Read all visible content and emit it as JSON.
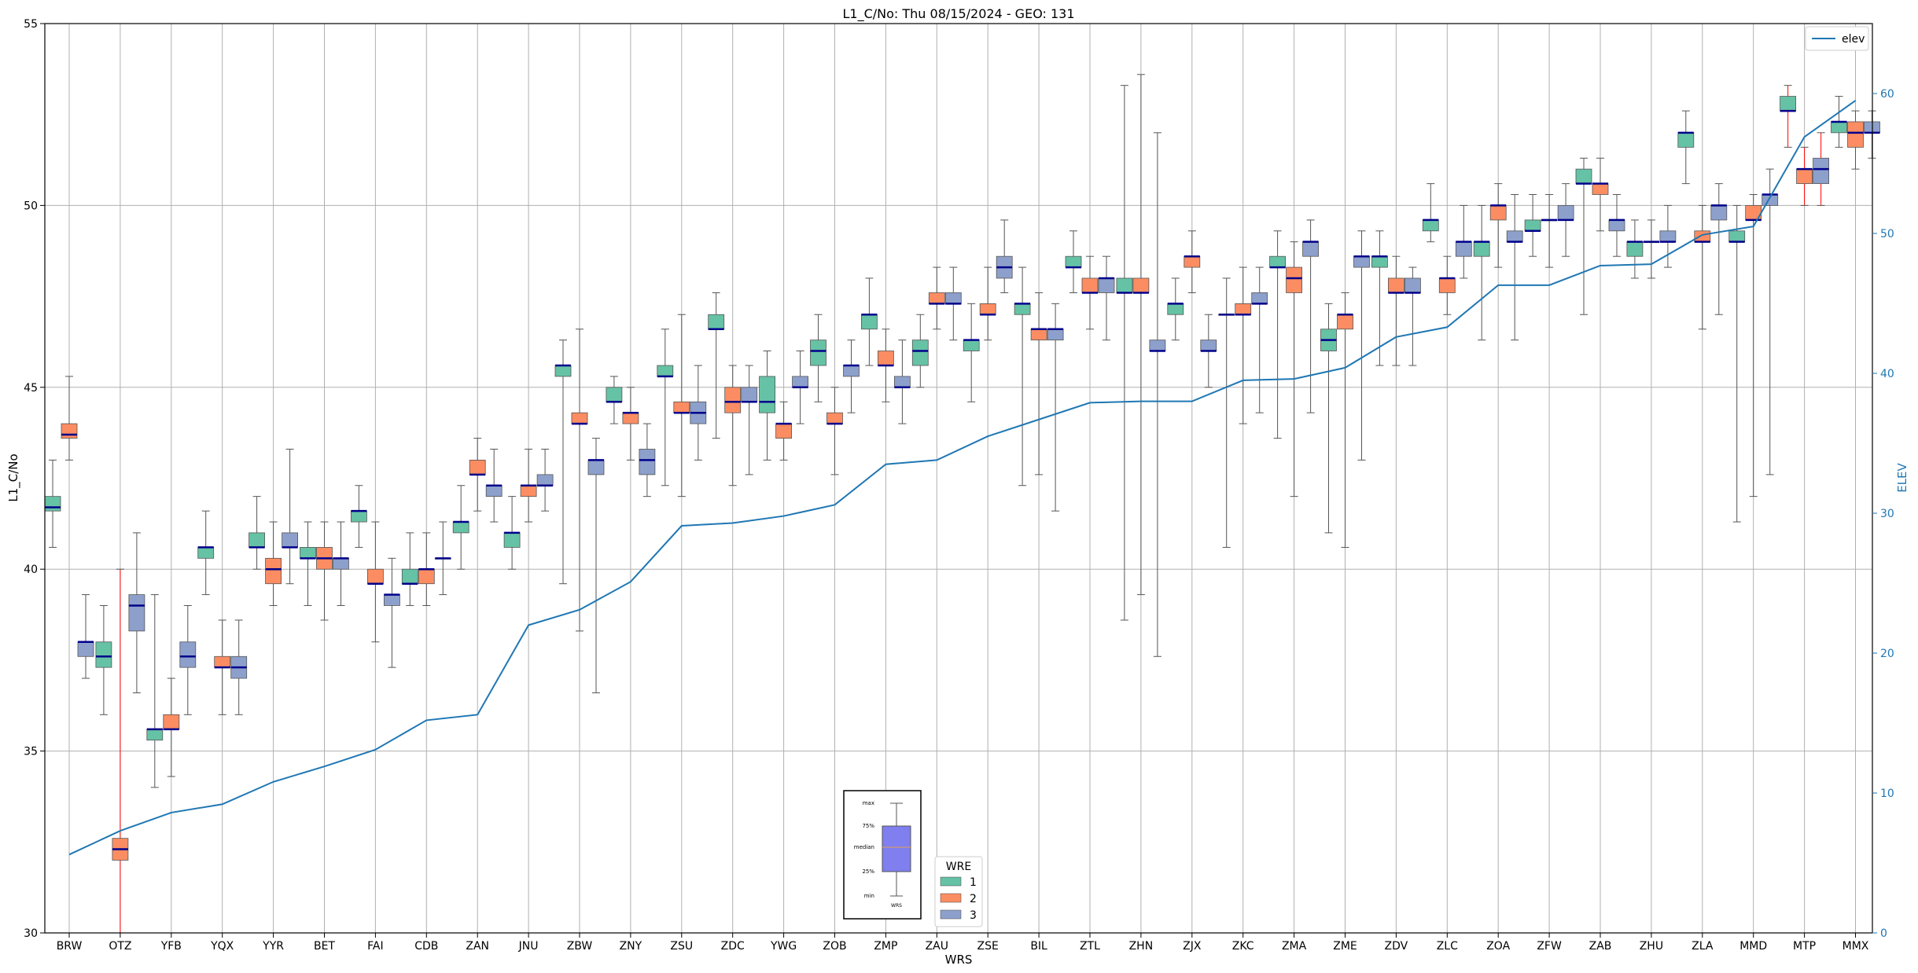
{
  "chart_data": {
    "type": "box",
    "title": "L1_C/No: Thu 08/15/2024 - GEO: 131",
    "xlabel": "WRS",
    "ylabel": "L1_C/No",
    "y2label": "ELEV",
    "ylim": [
      30,
      55
    ],
    "y2lim": [
      0,
      65
    ],
    "yticks": [
      30,
      35,
      40,
      45,
      50,
      55
    ],
    "y2ticks": [
      0,
      10,
      20,
      30,
      40,
      50,
      60
    ],
    "grid": true,
    "colors": {
      "wre1": "#66c2a5",
      "wre2": "#fc8d62",
      "wre3": "#8da0cb",
      "elev": "#1f77b4",
      "median": "#00008b",
      "outlier_whisker": "#ff0000"
    },
    "stations": [
      "BRW",
      "OTZ",
      "YFB",
      "YQX",
      "YYR",
      "BET",
      "FAI",
      "CDB",
      "ZAN",
      "JNU",
      "ZBW",
      "ZNY",
      "ZSU",
      "ZDC",
      "YWG",
      "ZOB",
      "ZMP",
      "ZAU",
      "ZSE",
      "BIL",
      "ZTL",
      "ZHN",
      "ZJX",
      "ZKC",
      "ZMA",
      "ZME",
      "ZDV",
      "ZLC",
      "ZOA",
      "ZFW",
      "ZAB",
      "ZHU",
      "ZLA",
      "MMD",
      "MTP",
      "MMX"
    ],
    "elev": [
      5.6,
      7.3,
      8.6,
      9.2,
      10.8,
      11.9,
      13.1,
      15.2,
      15.6,
      22.0,
      23.1,
      25.1,
      29.1,
      29.3,
      29.8,
      30.6,
      33.5,
      33.8,
      35.5,
      36.7,
      37.9,
      38.0,
      38.0,
      39.5,
      39.6,
      40.4,
      42.6,
      43.3,
      46.3,
      46.3,
      47.7,
      47.8,
      49.9,
      50.5,
      56.9,
      59.5
    ],
    "legend": {
      "title": "WRE",
      "items": [
        "1",
        "2",
        "3"
      ],
      "line_label": "elev"
    },
    "key": {
      "labels": [
        "max",
        "75%",
        "median",
        "25%",
        "min"
      ],
      "xlabel": "WRS"
    },
    "boxes": [
      {
        "station": "BRW",
        "wre": 1,
        "min": 40.6,
        "q1": 41.6,
        "med": 41.7,
        "q3": 42.0,
        "max": 43.0
      },
      {
        "station": "BRW",
        "wre": 2,
        "min": 43.0,
        "q1": 43.6,
        "med": 43.7,
        "q3": 44.0,
        "max": 45.3
      },
      {
        "station": "BRW",
        "wre": 3,
        "min": 37.0,
        "q1": 37.6,
        "med": 38.0,
        "q3": 38.0,
        "max": 39.3
      },
      {
        "station": "OTZ",
        "wre": 1,
        "min": 36.0,
        "q1": 37.3,
        "med": 37.6,
        "q3": 38.0,
        "max": 39.0
      },
      {
        "station": "OTZ",
        "wre": 2,
        "min": 30.0,
        "q1": 32.0,
        "med": 32.3,
        "q3": 32.6,
        "max": 40.0,
        "red": true
      },
      {
        "station": "OTZ",
        "wre": 3,
        "min": 36.6,
        "q1": 38.3,
        "med": 39.0,
        "q3": 39.3,
        "max": 41.0
      },
      {
        "station": "YFB",
        "wre": 1,
        "min": 34.0,
        "q1": 35.3,
        "med": 35.6,
        "q3": 35.6,
        "max": 39.3
      },
      {
        "station": "YFB",
        "wre": 2,
        "min": 34.3,
        "q1": 35.6,
        "med": 35.6,
        "q3": 36.0,
        "max": 37.0
      },
      {
        "station": "YFB",
        "wre": 3,
        "min": 36.0,
        "q1": 37.3,
        "med": 37.6,
        "q3": 38.0,
        "max": 39.0
      },
      {
        "station": "YQX",
        "wre": 1,
        "min": 39.3,
        "q1": 40.3,
        "med": 40.6,
        "q3": 40.6,
        "max": 41.6
      },
      {
        "station": "YQX",
        "wre": 2,
        "min": 36.0,
        "q1": 37.3,
        "med": 37.3,
        "q3": 37.6,
        "max": 38.6
      },
      {
        "station": "YQX",
        "wre": 3,
        "min": 36.0,
        "q1": 37.0,
        "med": 37.3,
        "q3": 37.6,
        "max": 38.6
      },
      {
        "station": "YYR",
        "wre": 1,
        "min": 40.0,
        "q1": 40.6,
        "med": 40.6,
        "q3": 41.0,
        "max": 42.0
      },
      {
        "station": "YYR",
        "wre": 2,
        "min": 39.0,
        "q1": 39.6,
        "med": 40.0,
        "q3": 40.3,
        "max": 41.3
      },
      {
        "station": "YYR",
        "wre": 3,
        "min": 39.6,
        "q1": 40.6,
        "med": 40.6,
        "q3": 41.0,
        "max": 43.3
      },
      {
        "station": "BET",
        "wre": 1,
        "min": 39.0,
        "q1": 40.3,
        "med": 40.3,
        "q3": 40.6,
        "max": 41.3
      },
      {
        "station": "BET",
        "wre": 2,
        "min": 38.6,
        "q1": 40.0,
        "med": 40.3,
        "q3": 40.6,
        "max": 41.3
      },
      {
        "station": "BET",
        "wre": 3,
        "min": 39.0,
        "q1": 40.0,
        "med": 40.3,
        "q3": 40.3,
        "max": 41.3
      },
      {
        "station": "FAI",
        "wre": 1,
        "min": 40.6,
        "q1": 41.3,
        "med": 41.6,
        "q3": 41.6,
        "max": 42.3
      },
      {
        "station": "FAI",
        "wre": 2,
        "min": 38.0,
        "q1": 39.6,
        "med": 39.6,
        "q3": 40.0,
        "max": 41.3
      },
      {
        "station": "FAI",
        "wre": 3,
        "min": 37.3,
        "q1": 39.0,
        "med": 39.3,
        "q3": 39.3,
        "max": 40.3
      },
      {
        "station": "CDB",
        "wre": 1,
        "min": 39.0,
        "q1": 39.6,
        "med": 39.6,
        "q3": 40.0,
        "max": 41.0
      },
      {
        "station": "CDB",
        "wre": 2,
        "min": 39.0,
        "q1": 39.6,
        "med": 40.0,
        "q3": 40.0,
        "max": 41.0
      },
      {
        "station": "CDB",
        "wre": 3,
        "min": 39.3,
        "q1": 40.3,
        "med": 40.3,
        "q3": 40.3,
        "max": 41.3
      },
      {
        "station": "ZAN",
        "wre": 1,
        "min": 40.0,
        "q1": 41.0,
        "med": 41.3,
        "q3": 41.3,
        "max": 42.3
      },
      {
        "station": "ZAN",
        "wre": 2,
        "min": 41.6,
        "q1": 42.6,
        "med": 42.6,
        "q3": 43.0,
        "max": 43.6
      },
      {
        "station": "ZAN",
        "wre": 3,
        "min": 41.3,
        "q1": 42.0,
        "med": 42.3,
        "q3": 42.3,
        "max": 43.3
      },
      {
        "station": "JNU",
        "wre": 1,
        "min": 40.0,
        "q1": 40.6,
        "med": 41.0,
        "q3": 41.0,
        "max": 42.0
      },
      {
        "station": "JNU",
        "wre": 2,
        "min": 41.3,
        "q1": 42.0,
        "med": 42.3,
        "q3": 42.3,
        "max": 43.3
      },
      {
        "station": "JNU",
        "wre": 3,
        "min": 41.6,
        "q1": 42.3,
        "med": 42.3,
        "q3": 42.6,
        "max": 43.3
      },
      {
        "station": "ZBW",
        "wre": 1,
        "min": 39.6,
        "q1": 45.3,
        "med": 45.6,
        "q3": 45.6,
        "max": 46.3
      },
      {
        "station": "ZBW",
        "wre": 2,
        "min": 38.3,
        "q1": 44.0,
        "med": 44.0,
        "q3": 44.3,
        "max": 46.6
      },
      {
        "station": "ZBW",
        "wre": 3,
        "min": 36.6,
        "q1": 42.6,
        "med": 43.0,
        "q3": 43.0,
        "max": 43.6
      },
      {
        "station": "ZNY",
        "wre": 1,
        "min": 44.0,
        "q1": 44.6,
        "med": 44.6,
        "q3": 45.0,
        "max": 45.3
      },
      {
        "station": "ZNY",
        "wre": 2,
        "min": 43.0,
        "q1": 44.0,
        "med": 44.3,
        "q3": 44.3,
        "max": 45.0
      },
      {
        "station": "ZNY",
        "wre": 3,
        "min": 42.0,
        "q1": 42.6,
        "med": 43.0,
        "q3": 43.3,
        "max": 44.0
      },
      {
        "station": "ZSU",
        "wre": 1,
        "min": 42.3,
        "q1": 45.3,
        "med": 45.3,
        "q3": 45.6,
        "max": 46.6
      },
      {
        "station": "ZSU",
        "wre": 2,
        "min": 42.0,
        "q1": 44.3,
        "med": 44.3,
        "q3": 44.6,
        "max": 47.0
      },
      {
        "station": "ZSU",
        "wre": 3,
        "min": 43.0,
        "q1": 44.0,
        "med": 44.3,
        "q3": 44.6,
        "max": 45.6
      },
      {
        "station": "ZDC",
        "wre": 1,
        "min": 43.6,
        "q1": 46.6,
        "med": 46.6,
        "q3": 47.0,
        "max": 47.6
      },
      {
        "station": "ZDC",
        "wre": 2,
        "min": 42.3,
        "q1": 44.3,
        "med": 44.6,
        "q3": 45.0,
        "max": 45.6
      },
      {
        "station": "ZDC",
        "wre": 3,
        "min": 42.6,
        "q1": 44.6,
        "med": 44.6,
        "q3": 45.0,
        "max": 45.6
      },
      {
        "station": "YWG",
        "wre": 1,
        "min": 43.0,
        "q1": 44.3,
        "med": 44.6,
        "q3": 45.3,
        "max": 46.0
      },
      {
        "station": "YWG",
        "wre": 2,
        "min": 43.0,
        "q1": 43.6,
        "med": 44.0,
        "q3": 44.0,
        "max": 44.6
      },
      {
        "station": "YWG",
        "wre": 3,
        "min": 44.0,
        "q1": 45.0,
        "med": 45.0,
        "q3": 45.3,
        "max": 46.0
      },
      {
        "station": "ZOB",
        "wre": 1,
        "min": 44.6,
        "q1": 45.6,
        "med": 46.0,
        "q3": 46.3,
        "max": 47.0
      },
      {
        "station": "ZOB",
        "wre": 2,
        "min": 42.6,
        "q1": 44.0,
        "med": 44.0,
        "q3": 44.3,
        "max": 45.0
      },
      {
        "station": "ZOB",
        "wre": 3,
        "min": 44.3,
        "q1": 45.3,
        "med": 45.6,
        "q3": 45.6,
        "max": 46.3
      },
      {
        "station": "ZMP",
        "wre": 1,
        "min": 45.6,
        "q1": 46.6,
        "med": 47.0,
        "q3": 47.0,
        "max": 48.0
      },
      {
        "station": "ZMP",
        "wre": 2,
        "min": 44.6,
        "q1": 45.6,
        "med": 45.6,
        "q3": 46.0,
        "max": 46.6
      },
      {
        "station": "ZMP",
        "wre": 3,
        "min": 44.0,
        "q1": 45.0,
        "med": 45.0,
        "q3": 45.3,
        "max": 46.3
      },
      {
        "station": "ZAU",
        "wre": 1,
        "min": 45.0,
        "q1": 45.6,
        "med": 46.0,
        "q3": 46.3,
        "max": 47.0
      },
      {
        "station": "ZAU",
        "wre": 2,
        "min": 46.6,
        "q1": 47.3,
        "med": 47.3,
        "q3": 47.6,
        "max": 48.3
      },
      {
        "station": "ZAU",
        "wre": 3,
        "min": 46.3,
        "q1": 47.3,
        "med": 47.3,
        "q3": 47.6,
        "max": 48.3
      },
      {
        "station": "ZSE",
        "wre": 1,
        "min": 44.6,
        "q1": 46.0,
        "med": 46.3,
        "q3": 46.3,
        "max": 47.3
      },
      {
        "station": "ZSE",
        "wre": 2,
        "min": 46.3,
        "q1": 47.0,
        "med": 47.0,
        "q3": 47.3,
        "max": 48.3
      },
      {
        "station": "ZSE",
        "wre": 3,
        "min": 47.6,
        "q1": 48.0,
        "med": 48.3,
        "q3": 48.6,
        "max": 49.6
      },
      {
        "station": "BIL",
        "wre": 1,
        "min": 42.3,
        "q1": 47.0,
        "med": 47.3,
        "q3": 47.3,
        "max": 48.3
      },
      {
        "station": "BIL",
        "wre": 2,
        "min": 42.6,
        "q1": 46.3,
        "med": 46.6,
        "q3": 46.6,
        "max": 47.6
      },
      {
        "station": "BIL",
        "wre": 3,
        "min": 41.6,
        "q1": 46.3,
        "med": 46.6,
        "q3": 46.6,
        "max": 47.3
      },
      {
        "station": "ZTL",
        "wre": 1,
        "min": 47.6,
        "q1": 48.3,
        "med": 48.3,
        "q3": 48.6,
        "max": 49.3
      },
      {
        "station": "ZTL",
        "wre": 2,
        "min": 46.6,
        "q1": 47.6,
        "med": 47.6,
        "q3": 48.0,
        "max": 48.6
      },
      {
        "station": "ZTL",
        "wre": 3,
        "min": 46.3,
        "q1": 47.6,
        "med": 48.0,
        "q3": 48.0,
        "max": 48.6
      },
      {
        "station": "ZHN",
        "wre": 1,
        "min": 38.6,
        "q1": 47.6,
        "med": 47.6,
        "q3": 48.0,
        "max": 53.3
      },
      {
        "station": "ZHN",
        "wre": 2,
        "min": 39.3,
        "q1": 47.6,
        "med": 47.6,
        "q3": 48.0,
        "max": 53.6
      },
      {
        "station": "ZHN",
        "wre": 3,
        "min": 37.6,
        "q1": 46.0,
        "med": 46.0,
        "q3": 46.3,
        "max": 52.0
      },
      {
        "station": "ZJX",
        "wre": 1,
        "min": 46.3,
        "q1": 47.0,
        "med": 47.3,
        "q3": 47.3,
        "max": 48.0
      },
      {
        "station": "ZJX",
        "wre": 2,
        "min": 47.6,
        "q1": 48.3,
        "med": 48.6,
        "q3": 48.6,
        "max": 49.3
      },
      {
        "station": "ZJX",
        "wre": 3,
        "min": 45.0,
        "q1": 46.0,
        "med": 46.0,
        "q3": 46.3,
        "max": 47.0
      },
      {
        "station": "ZKC",
        "wre": 1,
        "min": 40.6,
        "q1": 47.0,
        "med": 47.0,
        "q3": 47.0,
        "max": 48.0
      },
      {
        "station": "ZKC",
        "wre": 2,
        "min": 44.0,
        "q1": 47.0,
        "med": 47.0,
        "q3": 47.3,
        "max": 48.3
      },
      {
        "station": "ZKC",
        "wre": 3,
        "min": 44.3,
        "q1": 47.3,
        "med": 47.3,
        "q3": 47.6,
        "max": 48.3
      },
      {
        "station": "ZMA",
        "wre": 1,
        "min": 43.6,
        "q1": 48.3,
        "med": 48.3,
        "q3": 48.6,
        "max": 49.3
      },
      {
        "station": "ZMA",
        "wre": 2,
        "min": 42.0,
        "q1": 47.6,
        "med": 48.0,
        "q3": 48.3,
        "max": 49.0
      },
      {
        "station": "ZMA",
        "wre": 3,
        "min": 44.3,
        "q1": 48.6,
        "med": 49.0,
        "q3": 49.0,
        "max": 49.6
      },
      {
        "station": "ZME",
        "wre": 1,
        "min": 41.0,
        "q1": 46.0,
        "med": 46.3,
        "q3": 46.6,
        "max": 47.3
      },
      {
        "station": "ZME",
        "wre": 2,
        "min": 40.6,
        "q1": 46.6,
        "med": 47.0,
        "q3": 47.0,
        "max": 47.6
      },
      {
        "station": "ZME",
        "wre": 3,
        "min": 43.0,
        "q1": 48.3,
        "med": 48.6,
        "q3": 48.6,
        "max": 49.3
      },
      {
        "station": "ZDV",
        "wre": 1,
        "min": 45.6,
        "q1": 48.3,
        "med": 48.6,
        "q3": 48.6,
        "max": 49.3
      },
      {
        "station": "ZDV",
        "wre": 2,
        "min": 45.6,
        "q1": 47.6,
        "med": 47.6,
        "q3": 48.0,
        "max": 48.6
      },
      {
        "station": "ZDV",
        "wre": 3,
        "min": 45.6,
        "q1": 47.6,
        "med": 47.6,
        "q3": 48.0,
        "max": 48.3
      },
      {
        "station": "ZLC",
        "wre": 1,
        "min": 49.0,
        "q1": 49.3,
        "med": 49.6,
        "q3": 49.6,
        "max": 50.6
      },
      {
        "station": "ZLC",
        "wre": 2,
        "min": 47.0,
        "q1": 47.6,
        "med": 48.0,
        "q3": 48.0,
        "max": 48.6
      },
      {
        "station": "ZLC",
        "wre": 3,
        "min": 48.0,
        "q1": 48.6,
        "med": 49.0,
        "q3": 49.0,
        "max": 50.0
      },
      {
        "station": "ZOA",
        "wre": 1,
        "min": 46.3,
        "q1": 48.6,
        "med": 49.0,
        "q3": 49.0,
        "max": 50.0
      },
      {
        "station": "ZOA",
        "wre": 2,
        "min": 48.3,
        "q1": 49.6,
        "med": 50.0,
        "q3": 50.0,
        "max": 50.6
      },
      {
        "station": "ZOA",
        "wre": 3,
        "min": 46.3,
        "q1": 49.0,
        "med": 49.0,
        "q3": 49.3,
        "max": 50.3
      },
      {
        "station": "ZFW",
        "wre": 1,
        "min": 48.6,
        "q1": 49.3,
        "med": 49.3,
        "q3": 49.6,
        "max": 50.3
      },
      {
        "station": "ZFW",
        "wre": 2,
        "min": 48.3,
        "q1": 49.6,
        "med": 49.6,
        "q3": 49.6,
        "max": 50.3
      },
      {
        "station": "ZFW",
        "wre": 3,
        "min": 48.6,
        "q1": 49.6,
        "med": 49.6,
        "q3": 50.0,
        "max": 50.6
      },
      {
        "station": "ZAB",
        "wre": 1,
        "min": 47.0,
        "q1": 50.6,
        "med": 50.6,
        "q3": 51.0,
        "max": 51.3
      },
      {
        "station": "ZAB",
        "wre": 2,
        "min": 49.3,
        "q1": 50.3,
        "med": 50.6,
        "q3": 50.6,
        "max": 51.3
      },
      {
        "station": "ZAB",
        "wre": 3,
        "min": 48.6,
        "q1": 49.3,
        "med": 49.6,
        "q3": 49.6,
        "max": 50.3
      },
      {
        "station": "ZHU",
        "wre": 1,
        "min": 48.0,
        "q1": 48.6,
        "med": 49.0,
        "q3": 49.0,
        "max": 49.6
      },
      {
        "station": "ZHU",
        "wre": 2,
        "min": 48.0,
        "q1": 49.0,
        "med": 49.0,
        "q3": 49.0,
        "max": 49.6
      },
      {
        "station": "ZHU",
        "wre": 3,
        "min": 48.3,
        "q1": 49.0,
        "med": 49.0,
        "q3": 49.3,
        "max": 50.0
      },
      {
        "station": "ZLA",
        "wre": 1,
        "min": 50.6,
        "q1": 51.6,
        "med": 52.0,
        "q3": 52.0,
        "max": 52.6
      },
      {
        "station": "ZLA",
        "wre": 2,
        "min": 46.6,
        "q1": 49.0,
        "med": 49.0,
        "q3": 49.3,
        "max": 50.0
      },
      {
        "station": "ZLA",
        "wre": 3,
        "min": 47.0,
        "q1": 49.6,
        "med": 50.0,
        "q3": 50.0,
        "max": 50.6
      },
      {
        "station": "MMD",
        "wre": 1,
        "min": 41.3,
        "q1": 49.0,
        "med": 49.0,
        "q3": 49.3,
        "max": 50.0
      },
      {
        "station": "MMD",
        "wre": 2,
        "min": 42.0,
        "q1": 49.6,
        "med": 49.6,
        "q3": 50.0,
        "max": 50.3
      },
      {
        "station": "MMD",
        "wre": 3,
        "min": 42.6,
        "q1": 50.0,
        "med": 50.3,
        "q3": 50.3,
        "max": 51.0
      },
      {
        "station": "MTP",
        "wre": 1,
        "min": 51.6,
        "q1": 52.6,
        "med": 52.6,
        "q3": 53.0,
        "max": 53.3,
        "red": true
      },
      {
        "station": "MTP",
        "wre": 2,
        "min": 50.0,
        "q1": 50.6,
        "med": 51.0,
        "q3": 51.0,
        "max": 51.6,
        "red": true
      },
      {
        "station": "MTP",
        "wre": 3,
        "min": 50.0,
        "q1": 50.6,
        "med": 51.0,
        "q3": 51.3,
        "max": 52.0,
        "red": true
      },
      {
        "station": "MMX",
        "wre": 1,
        "min": 51.6,
        "q1": 52.0,
        "med": 52.3,
        "q3": 52.3,
        "max": 53.0
      },
      {
        "station": "MMX",
        "wre": 2,
        "min": 51.0,
        "q1": 51.6,
        "med": 52.0,
        "q3": 52.3,
        "max": 52.6
      },
      {
        "station": "MMX",
        "wre": 3,
        "min": 51.3,
        "q1": 52.0,
        "med": 52.0,
        "q3": 52.3,
        "max": 52.6
      }
    ]
  }
}
